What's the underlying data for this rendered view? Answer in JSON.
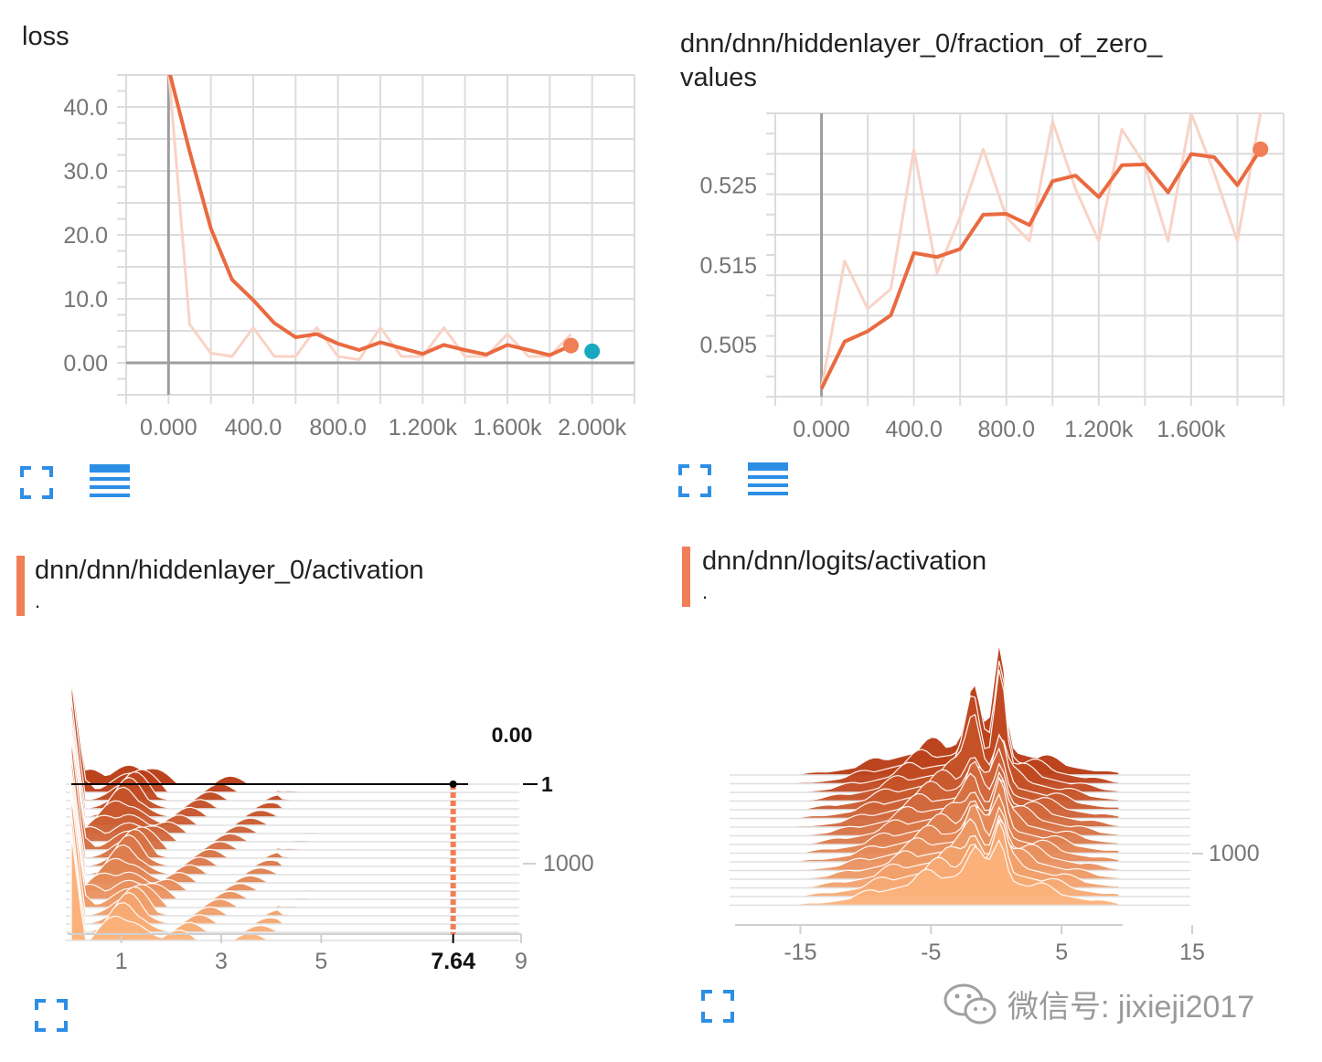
{
  "colors": {
    "accent": "#f07e56",
    "line": "#ea6a40",
    "raw_line": "#f9d3c6",
    "marker_alt": "#18a7c0",
    "grid": "#dcdcdc",
    "axis": "#9e9e9e",
    "icon_blue": "#2d8ee6"
  },
  "cards": {
    "loss": {
      "title": "loss",
      "expand_icon": "fullscreen-icon",
      "list_icon": "list-icon"
    },
    "zero_fraction": {
      "title": "dnn/dnn/hiddenlayer_0/fraction_of_zero_\nvalues",
      "expand_icon": "fullscreen-icon",
      "list_icon": "list-icon"
    },
    "hist_hidden": {
      "title": "dnn/dnn/hiddenlayer_0/activation",
      "dot": ".",
      "hover_value": "0.00",
      "hover_step": "1",
      "hover_x": "7.64",
      "expand_icon": "fullscreen-icon"
    },
    "hist_logits": {
      "title": "dnn/dnn/logits/activation",
      "dot": ".",
      "expand_icon": "fullscreen-icon"
    }
  },
  "watermark": {
    "text": "微信号: jixieji2017",
    "icon": "wechat-icon"
  },
  "chart_data": [
    {
      "type": "line",
      "title": "loss",
      "x": [
        0,
        100,
        200,
        300,
        400,
        500,
        600,
        700,
        800,
        900,
        1000,
        1100,
        1200,
        1300,
        1400,
        1500,
        1600,
        1700,
        1800,
        1900
      ],
      "series": [
        {
          "values": [
            46,
            33,
            21,
            13,
            9.8,
            6.2,
            4.0,
            4.5,
            3.0,
            2.0,
            3.2,
            2.3,
            1.4,
            2.8,
            2.0,
            1.3,
            2.8,
            2.0,
            1.2,
            2.7
          ],
          "raw": [
            46,
            6,
            1.5,
            1.0,
            5.5,
            1.0,
            1.0,
            5.5,
            1.0,
            0.5,
            5.5,
            1.0,
            1.0,
            5.5,
            1.0,
            1.0,
            4.5,
            1.0,
            1.0,
            4.5
          ]
        }
      ],
      "markers": [
        {
          "x": 1900,
          "y": 2.7,
          "color": "#f07e56"
        },
        {
          "x": 2000,
          "y": 1.8,
          "color": "#18a7c0"
        }
      ],
      "xlim": [
        -200,
        2200
      ],
      "ylim": [
        -5,
        45
      ],
      "xticks": [
        0,
        400,
        800,
        1200,
        1600,
        2000
      ],
      "xtick_labels": [
        "0.000",
        "400.0",
        "800.0",
        "1.200k",
        "1.600k",
        "2.000k"
      ],
      "yticks": [
        0,
        10,
        20,
        30,
        40
      ],
      "ytick_labels": [
        "0.00",
        "10.0",
        "20.0",
        "30.0",
        "40.0"
      ],
      "grid": true
    },
    {
      "type": "line",
      "title": "dnn/dnn/hiddenlayer_0/fraction_of_zero_ values",
      "x": [
        0,
        100,
        200,
        300,
        400,
        500,
        600,
        700,
        800,
        900,
        1000,
        1100,
        1200,
        1300,
        1400,
        1500,
        1600,
        1700,
        1800,
        1900
      ],
      "series": [
        {
          "values": [
            0.4995,
            0.5054,
            0.5067,
            0.5087,
            0.5165,
            0.516,
            0.517,
            0.5213,
            0.5214,
            0.52,
            0.5255,
            0.5262,
            0.5235,
            0.5275,
            0.5276,
            0.5241,
            0.5289,
            0.5285,
            0.525,
            0.5295
          ],
          "raw": [
            0.4995,
            0.5155,
            0.5095,
            0.512,
            0.5295,
            0.514,
            0.521,
            0.5295,
            0.521,
            0.518,
            0.533,
            0.5245,
            0.518,
            0.532,
            0.5275,
            0.518,
            0.534,
            0.5265,
            0.518,
            0.534
          ]
        }
      ],
      "markers": [
        {
          "x": 1900,
          "y": 0.5295,
          "color": "#f07e56"
        }
      ],
      "xlim": [
        -200,
        2000
      ],
      "ylim": [
        0.4985,
        0.534
      ],
      "xticks": [
        0,
        400,
        800,
        1200,
        1600
      ],
      "xtick_labels": [
        "0.000",
        "400.0",
        "800.0",
        "1.200k",
        "1.600k"
      ],
      "yticks": [
        0.505,
        0.515,
        0.525
      ],
      "ytick_labels": [
        "0.505",
        "0.515",
        "0.525"
      ],
      "grid": true
    },
    {
      "type": "area",
      "title": "dnn/dnn/hiddenlayer_0/activation",
      "xlim": [
        0,
        9
      ],
      "xticks": [
        1,
        3,
        5,
        7.64,
        9
      ],
      "xtick_labels": [
        "1",
        "3",
        "5",
        "7.64",
        "9"
      ],
      "ytick_labels": [
        "1",
        "1000"
      ],
      "hover": {
        "x": "7.64",
        "step": "1",
        "value": "0.00"
      },
      "offset_layers": 20
    },
    {
      "type": "area",
      "title": "dnn/dnn/logits/activation",
      "xlim": [
        -20,
        15
      ],
      "xticks": [
        -15,
        -5,
        5,
        15
      ],
      "xtick_labels": [
        "-15",
        "-5",
        "5",
        "15"
      ],
      "ytick_labels": [
        "1000"
      ],
      "offset_layers": 16
    }
  ]
}
